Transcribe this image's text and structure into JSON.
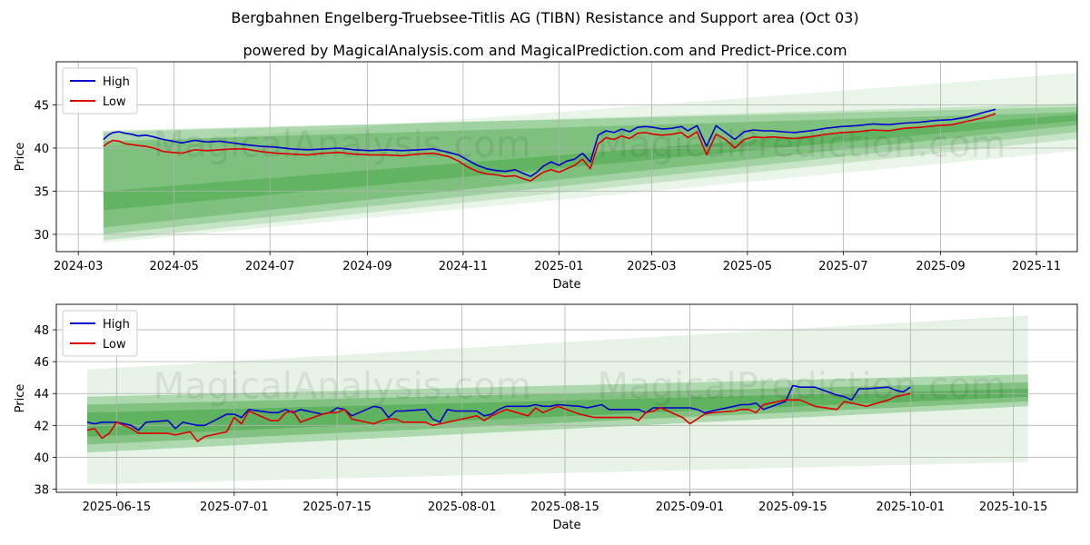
{
  "header": {
    "title": "Bergbahnen Engelberg-Truebsee-Titlis AG (TIBN) Resistance and Support area (Oct 03)",
    "subtitle": "powered by MagicalAnalysis.com and MagicalPrediction.com and Predict-Price.com"
  },
  "watermark": {
    "left": "MagicalAnalysis.com",
    "right": "MagicalPrediction.com"
  },
  "colors": {
    "high": "#0000cc",
    "low": "#dd0000",
    "band": "#2e9a2e",
    "grid": "#b0b0b0"
  },
  "chart_data": [
    {
      "type": "line",
      "xlabel": "Date",
      "ylabel": "Price",
      "x_ticks": [
        "2024-03",
        "2024-05",
        "2024-07",
        "2024-09",
        "2024-11",
        "2025-01",
        "2025-03",
        "2025-05",
        "2025-07",
        "2025-09",
        "2025-11"
      ],
      "x_tick_days": [
        -16,
        45,
        106,
        168,
        229,
        290,
        349,
        410,
        471,
        533,
        594
      ],
      "y_ticks": [
        "30",
        "35",
        "40",
        "45"
      ],
      "y_tick_values": [
        30,
        35,
        40,
        45
      ],
      "xlim": [
        -30,
        620
      ],
      "ylim": [
        28,
        50
      ],
      "legend": [
        "High",
        "Low"
      ],
      "legend_position": "top-left",
      "bands": [
        {
          "x": [
            0,
            627
          ],
          "lower": [
            29.0,
            39.8
          ],
          "upper": [
            40.2,
            48.8
          ],
          "opacity": 0.1
        },
        {
          "x": [
            0,
            627
          ],
          "lower": [
            29.3,
            41.2
          ],
          "upper": [
            41.8,
            45.2
          ],
          "opacity": 0.18
        },
        {
          "x": [
            0,
            627
          ],
          "lower": [
            30.0,
            42.0
          ],
          "upper": [
            42.0,
            44.8
          ],
          "opacity": 0.25
        },
        {
          "x": [
            0,
            627
          ],
          "lower": [
            30.8,
            42.8
          ],
          "upper": [
            40.8,
            44.2
          ],
          "opacity": 0.3
        },
        {
          "x": [
            0,
            627
          ],
          "lower": [
            32.8,
            43.3
          ],
          "upper": [
            35.0,
            44.0
          ],
          "opacity": 0.35
        }
      ],
      "series": [
        {
          "name": "High",
          "x": [
            0,
            3,
            6,
            10,
            14,
            18,
            22,
            27,
            32,
            38,
            44,
            50,
            58,
            66,
            74,
            82,
            90,
            100,
            110,
            120,
            130,
            140,
            150,
            160,
            170,
            180,
            190,
            200,
            210,
            220,
            226,
            232,
            238,
            244,
            250,
            256,
            262,
            268,
            272,
            276,
            280,
            285,
            290,
            295,
            300,
            305,
            310,
            315,
            320,
            325,
            330,
            335,
            340,
            345,
            350,
            356,
            362,
            368,
            372,
            378,
            384,
            390,
            396,
            402,
            408,
            414,
            420,
            426,
            432,
            440,
            450,
            460,
            470,
            480,
            490,
            500,
            510,
            520,
            530,
            540,
            550,
            560,
            568
          ],
          "values": [
            41.0,
            41.5,
            41.8,
            41.9,
            41.7,
            41.6,
            41.4,
            41.5,
            41.3,
            41.0,
            40.8,
            40.6,
            40.9,
            40.7,
            40.8,
            40.6,
            40.4,
            40.2,
            40.1,
            39.9,
            39.8,
            39.9,
            40.0,
            39.8,
            39.7,
            39.8,
            39.7,
            39.8,
            39.9,
            39.5,
            39.2,
            38.6,
            38.0,
            37.6,
            37.4,
            37.3,
            37.5,
            37.0,
            36.7,
            37.2,
            37.9,
            38.4,
            38.0,
            38.5,
            38.7,
            39.4,
            38.4,
            41.5,
            42.0,
            41.8,
            42.2,
            41.9,
            42.4,
            42.5,
            42.4,
            42.2,
            42.3,
            42.5,
            42.0,
            42.6,
            40.2,
            42.6,
            41.8,
            41.0,
            41.9,
            42.1,
            42.0,
            42.0,
            41.9,
            41.8,
            42.0,
            42.3,
            42.5,
            42.6,
            42.8,
            42.7,
            42.9,
            43.0,
            43.2,
            43.3,
            43.6,
            44.1,
            44.5
          ]
        },
        {
          "name": "Low",
          "x": [
            0,
            3,
            6,
            10,
            14,
            18,
            22,
            27,
            32,
            38,
            44,
            50,
            58,
            66,
            74,
            82,
            90,
            100,
            110,
            120,
            130,
            140,
            150,
            160,
            170,
            180,
            190,
            200,
            210,
            220,
            226,
            232,
            238,
            244,
            250,
            256,
            262,
            268,
            272,
            276,
            280,
            285,
            290,
            295,
            300,
            305,
            310,
            315,
            320,
            325,
            330,
            335,
            340,
            345,
            350,
            356,
            362,
            368,
            372,
            378,
            384,
            390,
            396,
            402,
            408,
            414,
            420,
            426,
            432,
            440,
            450,
            460,
            470,
            480,
            490,
            500,
            510,
            520,
            530,
            540,
            550,
            560,
            568
          ],
          "values": [
            40.2,
            40.6,
            40.9,
            40.8,
            40.5,
            40.4,
            40.3,
            40.2,
            40.0,
            39.6,
            39.5,
            39.4,
            39.8,
            39.7,
            39.8,
            39.9,
            39.9,
            39.6,
            39.4,
            39.3,
            39.2,
            39.4,
            39.5,
            39.3,
            39.2,
            39.2,
            39.1,
            39.3,
            39.4,
            39.0,
            38.5,
            37.8,
            37.3,
            37.0,
            36.9,
            36.7,
            36.8,
            36.4,
            36.2,
            36.7,
            37.2,
            37.5,
            37.2,
            37.6,
            38.0,
            38.7,
            37.6,
            40.5,
            41.2,
            41.0,
            41.4,
            41.1,
            41.7,
            41.8,
            41.6,
            41.5,
            41.6,
            41.8,
            41.2,
            41.9,
            39.2,
            41.6,
            41.0,
            40.0,
            41.0,
            41.3,
            41.2,
            41.3,
            41.2,
            41.1,
            41.3,
            41.6,
            41.8,
            41.9,
            42.1,
            42.0,
            42.3,
            42.4,
            42.6,
            42.7,
            43.1,
            43.5,
            44.0
          ]
        }
      ]
    },
    {
      "type": "line",
      "xlabel": "Date",
      "ylabel": "Price",
      "x_ticks": [
        "2025-06-15",
        "2025-07-01",
        "2025-07-15",
        "2025-08-01",
        "2025-08-15",
        "2025-09-01",
        "2025-09-15",
        "2025-10-01",
        "2025-10-15"
      ],
      "x_tick_days": [
        0,
        16,
        30,
        47,
        61,
        78,
        92,
        108,
        122
      ],
      "y_ticks": [
        "38",
        "40",
        "42",
        "44",
        "46",
        "48"
      ],
      "y_tick_values": [
        38,
        40,
        42,
        44,
        46,
        48
      ],
      "xlim": [
        -8.2,
        130.7
      ],
      "ylim": [
        37.8,
        49.6
      ],
      "legend": [
        "High",
        "Low"
      ],
      "legend_position": "top-left",
      "bands": [
        {
          "x": [
            -4,
            124
          ],
          "lower": [
            38.3,
            39.7
          ],
          "upper": [
            45.5,
            48.9
          ],
          "opacity": 0.12
        },
        {
          "x": [
            -4,
            124
          ],
          "lower": [
            40.3,
            43.2
          ],
          "upper": [
            43.8,
            45.2
          ],
          "opacity": 0.3
        },
        {
          "x": [
            -4,
            124
          ],
          "lower": [
            40.8,
            43.5
          ],
          "upper": [
            43.3,
            44.7
          ],
          "opacity": 0.35
        },
        {
          "x": [
            -4,
            124
          ],
          "lower": [
            41.3,
            43.8
          ],
          "upper": [
            42.8,
            44.3
          ],
          "opacity": 0.4
        }
      ],
      "series": [
        {
          "name": "High",
          "x": [
            -4,
            -3,
            -2,
            -1,
            0,
            2,
            3,
            4,
            7,
            8,
            9,
            10,
            11,
            12,
            15,
            16,
            17,
            18,
            21,
            22,
            23,
            24,
            25,
            28,
            29,
            30,
            31,
            32,
            35,
            36,
            37,
            38,
            39,
            42,
            43,
            44,
            45,
            46,
            49,
            50,
            51,
            52,
            53,
            56,
            57,
            58,
            59,
            60,
            63,
            64,
            65,
            66,
            67,
            70,
            71,
            72,
            73,
            74,
            77,
            78,
            79,
            80,
            81,
            84,
            85,
            86,
            87,
            88,
            91,
            92,
            93,
            94,
            95,
            98,
            99,
            100,
            101,
            102,
            105,
            106,
            107,
            108
          ],
          "values": [
            42.2,
            42.1,
            42.2,
            42.2,
            42.2,
            42.0,
            41.7,
            42.2,
            42.3,
            41.8,
            42.2,
            42.1,
            42.0,
            42.0,
            42.7,
            42.7,
            42.5,
            43.0,
            42.8,
            42.8,
            43.0,
            42.8,
            43.0,
            42.7,
            42.8,
            43.1,
            43.0,
            42.6,
            43.2,
            43.1,
            42.5,
            42.9,
            42.9,
            43.0,
            42.4,
            42.2,
            43.0,
            42.9,
            42.9,
            42.6,
            42.7,
            43.0,
            43.2,
            43.2,
            43.3,
            43.2,
            43.2,
            43.3,
            43.2,
            43.1,
            43.2,
            43.3,
            43.0,
            43.0,
            43.0,
            42.8,
            43.1,
            43.1,
            43.1,
            43.1,
            43.0,
            42.8,
            42.9,
            43.2,
            43.3,
            43.3,
            43.4,
            43.0,
            43.5,
            44.5,
            44.4,
            44.4,
            44.4,
            43.9,
            43.8,
            43.6,
            44.3,
            44.3,
            44.4,
            44.2,
            44.1,
            44.4
          ]
        },
        {
          "name": "Low",
          "x": [
            -4,
            -3,
            -2,
            -1,
            0,
            2,
            3,
            4,
            7,
            8,
            9,
            10,
            11,
            12,
            15,
            16,
            17,
            18,
            21,
            22,
            23,
            24,
            25,
            28,
            29,
            30,
            31,
            32,
            35,
            36,
            37,
            38,
            39,
            42,
            43,
            44,
            45,
            46,
            49,
            50,
            51,
            52,
            53,
            56,
            57,
            58,
            59,
            60,
            63,
            64,
            65,
            66,
            67,
            70,
            71,
            72,
            73,
            74,
            77,
            78,
            79,
            80,
            81,
            84,
            85,
            86,
            87,
            88,
            91,
            92,
            93,
            94,
            95,
            98,
            99,
            100,
            101,
            102,
            105,
            106,
            107,
            108
          ],
          "values": [
            41.7,
            41.8,
            41.2,
            41.5,
            42.2,
            41.8,
            41.5,
            41.5,
            41.5,
            41.4,
            41.5,
            41.6,
            41.0,
            41.3,
            41.6,
            42.5,
            42.1,
            42.9,
            42.3,
            42.3,
            42.8,
            42.9,
            42.2,
            42.7,
            42.8,
            42.8,
            43.0,
            42.4,
            42.1,
            42.3,
            42.4,
            42.4,
            42.2,
            42.2,
            42.0,
            42.1,
            42.2,
            42.3,
            42.6,
            42.3,
            42.6,
            42.8,
            43.0,
            42.6,
            43.1,
            42.8,
            43.0,
            43.2,
            42.7,
            42.6,
            42.5,
            42.5,
            42.5,
            42.5,
            42.3,
            42.8,
            42.9,
            43.1,
            42.5,
            42.1,
            42.4,
            42.7,
            42.8,
            42.9,
            43.0,
            43.0,
            42.8,
            43.3,
            43.6,
            43.6,
            43.6,
            43.4,
            43.2,
            43.0,
            43.5,
            43.4,
            43.3,
            43.2,
            43.6,
            43.8,
            43.9,
            44.0
          ]
        }
      ]
    }
  ]
}
